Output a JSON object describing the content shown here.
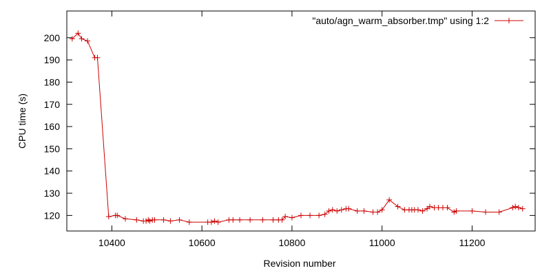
{
  "chart_data": {
    "type": "line",
    "title": "",
    "xlabel": "Revision number",
    "ylabel": "CPU time (s)",
    "xlim": [
      10300,
      11340
    ],
    "ylim": [
      113,
      212
    ],
    "xticks": [
      10400,
      10600,
      10800,
      11000,
      11200
    ],
    "yticks": [
      120,
      130,
      140,
      150,
      160,
      170,
      180,
      190,
      200
    ],
    "legend_position": "top-right",
    "series": [
      {
        "name": "\"auto/agn_warm_absorber.tmp\" using 1:2",
        "color": "#cc0000",
        "marker": "plus",
        "x": [
          10312,
          10325,
          10333,
          10346,
          10362,
          10368,
          10393,
          10408,
          10412,
          10430,
          10455,
          10470,
          10476,
          10481,
          10484,
          10490,
          10495,
          10515,
          10530,
          10550,
          10572,
          10613,
          10621,
          10628,
          10636,
          10660,
          10669,
          10684,
          10707,
          10735,
          10758,
          10770,
          10778,
          10785,
          10800,
          10820,
          10840,
          10860,
          10873,
          10882,
          10890,
          10900,
          10910,
          10920,
          10926,
          10945,
          10960,
          10980,
          10990,
          11000,
          11016,
          11035,
          11050,
          11060,
          11066,
          11072,
          11080,
          11090,
          11100,
          11106,
          11116,
          11125,
          11135,
          11145,
          11160,
          11165,
          11200,
          11230,
          11260,
          11290,
          11296,
          11303,
          11312
        ],
        "y": [
          199.5,
          202,
          199.5,
          198.5,
          191,
          191,
          119.5,
          120,
          120,
          118.5,
          118,
          117.5,
          117.5,
          118,
          117.5,
          118,
          118,
          118,
          117.5,
          118,
          117,
          117,
          117,
          117.5,
          117,
          118,
          118,
          118,
          118,
          118,
          118,
          118,
          118,
          119.5,
          119,
          120,
          120,
          120,
          120.5,
          122,
          122.5,
          122,
          122.5,
          123,
          123,
          122,
          122,
          121.5,
          121.5,
          122.5,
          127,
          124,
          122.5,
          122.5,
          122.5,
          122.5,
          122.5,
          122,
          123,
          124,
          123.5,
          123.5,
          123.5,
          123.5,
          121.5,
          122,
          122,
          121.5,
          121.5,
          123.5,
          124,
          123.5,
          123
        ]
      }
    ]
  }
}
